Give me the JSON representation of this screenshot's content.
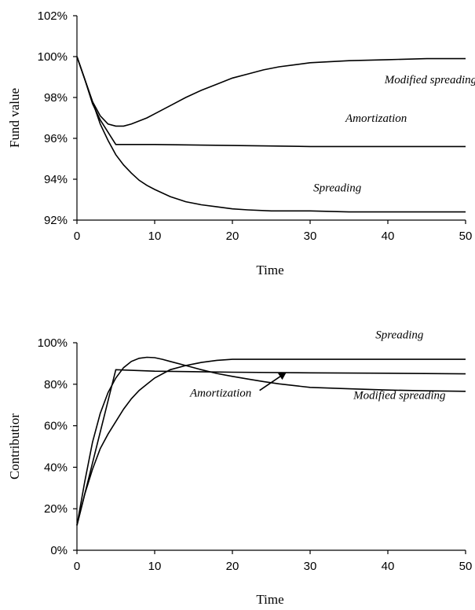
{
  "chart_data": [
    {
      "type": "line",
      "xlabel": "Time",
      "ylabel": "Fund value",
      "xlim": [
        0,
        50
      ],
      "ylim": [
        92,
        102
      ],
      "x_ticks": [
        "0",
        "10",
        "20",
        "30",
        "40",
        "50"
      ],
      "y_ticks": [
        "92%",
        "94%",
        "96%",
        "98%",
        "100%",
        "102%"
      ],
      "grid": false,
      "legend": "none",
      "series": [
        {
          "name": "Modified spreading",
          "x": [
            0,
            1,
            2,
            3,
            4,
            5,
            6,
            7,
            8,
            9,
            10,
            12,
            14,
            16,
            18,
            20,
            22,
            24,
            26,
            28,
            30,
            35,
            40,
            45,
            50
          ],
          "y": [
            100.0,
            98.9,
            97.8,
            97.1,
            96.7,
            96.6,
            96.6,
            96.7,
            96.85,
            97.0,
            97.2,
            97.6,
            98.0,
            98.35,
            98.65,
            98.95,
            99.15,
            99.35,
            99.5,
            99.6,
            99.7,
            99.8,
            99.85,
            99.9,
            99.9
          ]
        },
        {
          "name": "Amortization",
          "x": [
            0,
            1,
            2,
            3,
            4,
            5,
            10,
            20,
            30,
            40,
            50
          ],
          "y": [
            100.0,
            98.9,
            97.7,
            96.9,
            96.3,
            95.7,
            95.7,
            95.65,
            95.6,
            95.6,
            95.6
          ]
        },
        {
          "name": "Spreading",
          "x": [
            0,
            1,
            2,
            3,
            4,
            5,
            6,
            7,
            8,
            9,
            10,
            12,
            14,
            16,
            18,
            20,
            22,
            25,
            30,
            35,
            40,
            45,
            50
          ],
          "y": [
            100.0,
            98.9,
            97.8,
            96.7,
            95.9,
            95.2,
            94.7,
            94.3,
            93.95,
            93.7,
            93.5,
            93.15,
            92.9,
            92.75,
            92.65,
            92.55,
            92.5,
            92.45,
            92.45,
            92.4,
            92.4,
            92.4,
            92.4
          ]
        }
      ],
      "annotations": [
        {
          "text": "Modified spreading",
          "x": 45.5,
          "y": 98.7
        },
        {
          "text": "Amortization",
          "x": 38.5,
          "y": 96.8
        },
        {
          "text": "Spreading",
          "x": 33.5,
          "y": 93.4
        }
      ]
    },
    {
      "type": "line",
      "xlabel": "Time",
      "ylabel": "Contributior",
      "xlim": [
        0,
        50
      ],
      "ylim": [
        0,
        100
      ],
      "x_ticks": [
        "0",
        "10",
        "20",
        "30",
        "40",
        "50"
      ],
      "y_ticks": [
        "0%",
        "20%",
        "40%",
        "60%",
        "80%",
        "100%"
      ],
      "grid": false,
      "legend": "none",
      "series": [
        {
          "name": "Spreading",
          "x": [
            0,
            1,
            2,
            3,
            4,
            5,
            6,
            7,
            8,
            9,
            10,
            12,
            14,
            16,
            18,
            20,
            25,
            30,
            35,
            40,
            45,
            50
          ],
          "y": [
            12,
            27,
            39,
            49,
            56,
            62,
            68,
            73,
            77,
            80,
            83,
            87,
            89,
            90.5,
            91.5,
            92,
            92,
            92,
            92,
            92,
            92,
            92
          ]
        },
        {
          "name": "Amortization",
          "x": [
            0,
            1,
            2,
            3,
            4,
            5,
            10,
            20,
            30,
            40,
            50
          ],
          "y": [
            12,
            27,
            42,
            57,
            72,
            87,
            86.3,
            85.8,
            85.5,
            85.3,
            85
          ]
        },
        {
          "name": "Modified spreading",
          "x": [
            0,
            1,
            2,
            3,
            4,
            5,
            6,
            7,
            8,
            9,
            10,
            11,
            12,
            14,
            16,
            18,
            20,
            22,
            24,
            26,
            28,
            30,
            35,
            40,
            45,
            50
          ],
          "y": [
            12,
            33,
            52,
            66,
            76,
            83,
            88,
            91,
            92.5,
            93,
            92.8,
            92,
            91,
            89,
            87,
            85.2,
            83.8,
            82.5,
            81.3,
            80.2,
            79.3,
            78.5,
            77.8,
            77.2,
            76.8,
            76.6
          ]
        }
      ],
      "annotations": [
        {
          "text": "Spreading",
          "x": 41.5,
          "y": 102
        },
        {
          "text": "Amortization",
          "x": 18.5,
          "y": 74
        },
        {
          "text": "Modified spreading",
          "x": 41.5,
          "y": 73
        }
      ],
      "arrow": {
        "from": [
          23.5,
          77
        ],
        "to": [
          26.8,
          85.4
        ]
      }
    }
  ]
}
